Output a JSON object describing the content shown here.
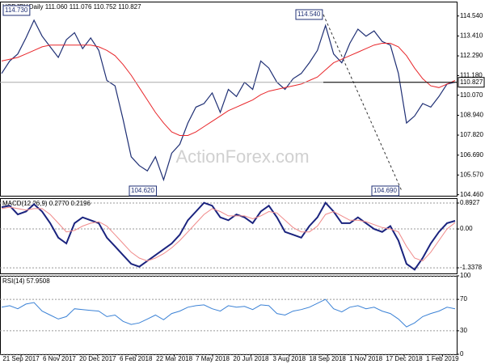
{
  "chart_data": [
    {
      "type": "line",
      "title": "USDJPY,Daily 111.060 111.076 110.752 110.827",
      "watermark": "ActionForex.com",
      "xticks": [
        "21 Sep 2017",
        "6 Nov 2017",
        "20 Dec 2017",
        "6 Feb 2018",
        "22 Mar 2018",
        "7 May 2018",
        "20 Jun 2018",
        "3 Aug 2018",
        "18 Sep 2018",
        "1 Nov 2018",
        "17 Dec 2018",
        "1 Feb 2019"
      ],
      "annotations": [
        "114.730",
        "104.620",
        "114.540",
        "104.690",
        "110.827"
      ],
      "ylim": [
        104.4,
        115.35
      ],
      "yticks": [
        {
          "value": 104.46,
          "label": "104.460"
        },
        {
          "value": 105.57,
          "label": "105.570"
        },
        {
          "value": 106.69,
          "label": "106.690"
        },
        {
          "value": 107.82,
          "label": "107.820"
        },
        {
          "value": 108.94,
          "label": "108.940"
        },
        {
          "value": 110.07,
          "label": "110.070"
        },
        {
          "value": 111.18,
          "label": "111.180"
        },
        {
          "value": 112.29,
          "label": "112.290"
        },
        {
          "value": 113.41,
          "label": "113.410"
        },
        {
          "value": 114.54,
          "label": "114.540"
        }
      ],
      "grid": false,
      "series": [
        {
          "color": "#1f2f74",
          "width": 1.2,
          "values": [
            111.3,
            112.0,
            112.4,
            113.3,
            114.3,
            113.4,
            112.8,
            112.2,
            113.2,
            113.6,
            112.7,
            113.3,
            112.6,
            110.9,
            110.6,
            108.7,
            106.6,
            106.1,
            105.8,
            106.6,
            105.3,
            106.8,
            107.3,
            108.5,
            109.4,
            109.6,
            110.2,
            109.1,
            110.4,
            110.0,
            110.8,
            110.4,
            112.0,
            111.6,
            110.8,
            110.4,
            111.0,
            111.3,
            111.9,
            112.6,
            114.0,
            112.4,
            111.9,
            113.0,
            113.8,
            113.4,
            113.7,
            113.1,
            112.9,
            111.3,
            108.5,
            108.9,
            109.6,
            109.4,
            110.0,
            110.7,
            110.8
          ]
        },
        {
          "color": "#e8262a",
          "width": 1,
          "values": [
            112.0,
            112.1,
            112.2,
            112.4,
            112.6,
            112.8,
            112.9,
            112.9,
            112.9,
            112.9,
            112.9,
            112.9,
            112.8,
            112.6,
            112.3,
            111.8,
            111.2,
            110.5,
            109.8,
            109.1,
            108.5,
            108.0,
            107.8,
            107.8,
            108.0,
            108.3,
            108.6,
            108.9,
            109.2,
            109.4,
            109.6,
            109.8,
            110.1,
            110.3,
            110.4,
            110.5,
            110.6,
            110.7,
            110.9,
            111.1,
            111.5,
            111.9,
            112.1,
            112.3,
            112.5,
            112.7,
            112.9,
            113.0,
            113.0,
            112.8,
            112.3,
            111.6,
            111.0,
            110.6,
            110.5,
            110.7,
            110.9
          ]
        }
      ]
    },
    {
      "type": "line",
      "title": "MACD(12,26,9) 0.2770 0.2196",
      "ylim": [
        -1.53,
        1.06
      ],
      "yticks": [
        -1.3378,
        {
          "value": 0,
          "label": "0.00"
        },
        0.8927
      ],
      "grid": true,
      "series": [
        {
          "color": "#1a237e",
          "width": 2,
          "values": [
            0.75,
            0.8,
            0.5,
            0.6,
            0.85,
            0.6,
            0.2,
            -0.3,
            -0.5,
            0.2,
            0.4,
            0.3,
            0.2,
            -0.3,
            -0.6,
            -0.9,
            -1.2,
            -1.3,
            -1.1,
            -0.9,
            -0.7,
            -0.5,
            -0.2,
            0.3,
            0.6,
            0.9,
            0.8,
            0.4,
            0.3,
            0.5,
            0.4,
            0.2,
            0.6,
            0.8,
            0.4,
            -0.1,
            -0.2,
            -0.3,
            0.1,
            0.4,
            0.9,
            0.6,
            0.2,
            0.2,
            0.4,
            0.2,
            0.0,
            -0.1,
            0.1,
            -0.4,
            -1.2,
            -1.4,
            -1.0,
            -0.5,
            -0.1,
            0.2,
            0.28
          ]
        },
        {
          "color": "#f08a8a",
          "width": 1,
          "values": [
            0.7,
            0.75,
            0.7,
            0.65,
            0.7,
            0.7,
            0.5,
            0.2,
            -0.1,
            -0.05,
            0.1,
            0.2,
            0.25,
            0.1,
            -0.2,
            -0.5,
            -0.8,
            -1.0,
            -1.1,
            -1.0,
            -0.85,
            -0.65,
            -0.4,
            -0.1,
            0.2,
            0.5,
            0.7,
            0.6,
            0.45,
            0.45,
            0.45,
            0.35,
            0.45,
            0.6,
            0.55,
            0.3,
            0.05,
            -0.1,
            -0.1,
            0.1,
            0.5,
            0.6,
            0.45,
            0.3,
            0.3,
            0.25,
            0.15,
            0.05,
            0.0,
            -0.1,
            -0.6,
            -1.0,
            -1.1,
            -0.8,
            -0.4,
            0.0,
            0.22
          ]
        }
      ]
    },
    {
      "type": "line",
      "title": "RSI(14) 57.9508",
      "ylim": [
        0,
        100
      ],
      "yticks": [
        0,
        30,
        70,
        100
      ],
      "grid": true,
      "series": [
        {
          "color": "#3b82d6",
          "width": 1,
          "values": [
            60,
            62,
            58,
            64,
            66,
            55,
            50,
            45,
            48,
            58,
            57,
            56,
            55,
            48,
            50,
            42,
            38,
            40,
            45,
            50,
            44,
            52,
            55,
            60,
            62,
            63,
            58,
            55,
            62,
            60,
            61,
            57,
            63,
            62,
            52,
            50,
            55,
            57,
            60,
            65,
            70,
            58,
            54,
            60,
            62,
            58,
            60,
            55,
            52,
            45,
            35,
            40,
            48,
            52,
            55,
            60,
            58
          ]
        }
      ]
    }
  ]
}
